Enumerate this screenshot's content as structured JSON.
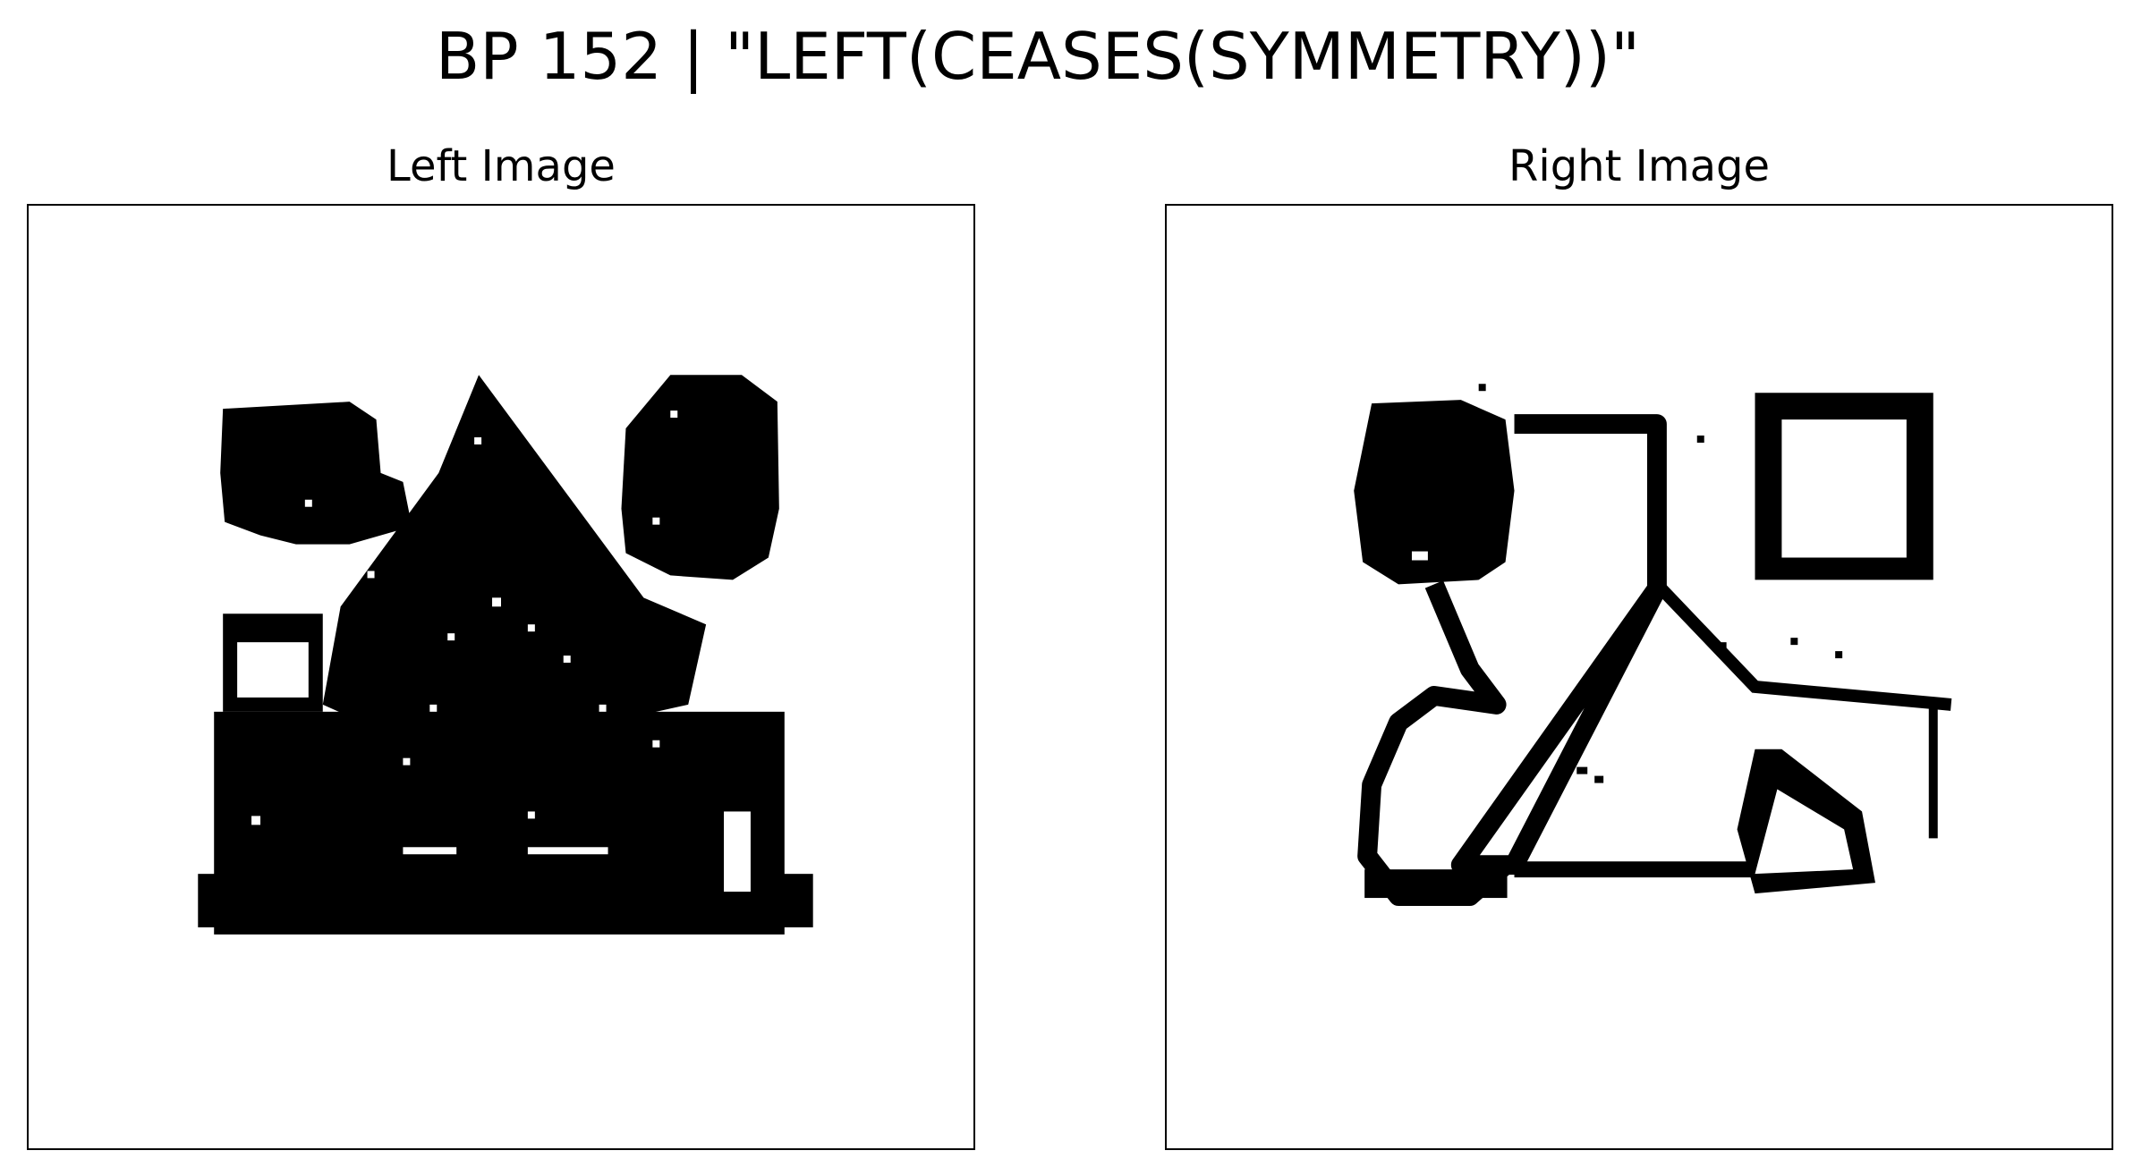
{
  "figure": {
    "title": "BP 152 | \"LEFT(CEASES(SYMMETRY))\"",
    "left_panel": {
      "title": "Left Image",
      "shapes": [
        "circle",
        "triangle",
        "circle",
        "rectangle",
        "rectangle"
      ]
    },
    "right_panel": {
      "title": "Right Image",
      "shapes": [
        "circle",
        "triangle",
        "rectangle",
        "circle",
        "line",
        "triangle"
      ]
    }
  }
}
